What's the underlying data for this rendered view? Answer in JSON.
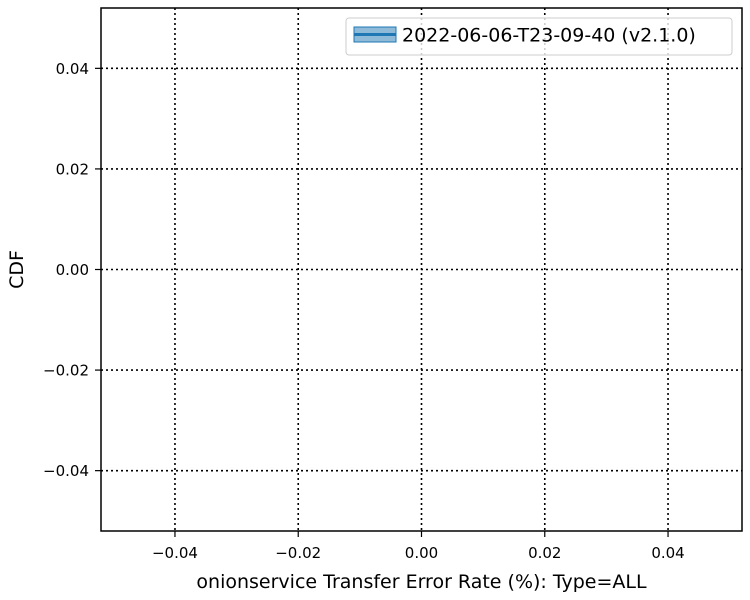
{
  "chart_data": {
    "type": "line",
    "title": "",
    "xlabel": "onionservice Transfer Error Rate (%): Type=ALL",
    "ylabel": "CDF",
    "xlim": [
      -0.052,
      0.052
    ],
    "ylim": [
      -0.052,
      0.052
    ],
    "x_ticks": [
      -0.04,
      -0.02,
      0.0,
      0.02,
      0.04
    ],
    "y_ticks": [
      -0.04,
      -0.02,
      0.0,
      0.02,
      0.04
    ],
    "x_tick_labels": [
      "−0.04",
      "−0.02",
      "0.00",
      "0.02",
      "0.04"
    ],
    "y_tick_labels": [
      "−0.04",
      "−0.02",
      "0.00",
      "0.02",
      "0.04"
    ],
    "grid": true,
    "grid_style": "dotted",
    "legend_position": "top-right",
    "series": [
      {
        "name": "2022-06-06-T23-09-40 (v2.1.0)",
        "color": "#1f77b4",
        "x": [],
        "y": []
      }
    ]
  }
}
